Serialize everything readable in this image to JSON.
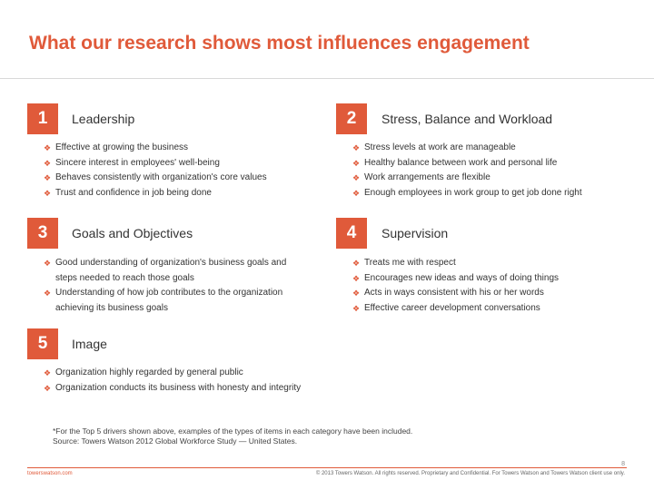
{
  "title": "What our research shows most influences engagement",
  "bullet_icon": "diamond-cluster-icon",
  "accent_color": "#e05a3a",
  "sections": [
    {
      "number": "1",
      "heading": "Leadership",
      "items": [
        "Effective at growing the business",
        "Sincere interest in employees' well-being",
        "Behaves consistently with organization's core values",
        "Trust and confidence in job being done"
      ]
    },
    {
      "number": "2",
      "heading": "Stress, Balance and Workload",
      "items": [
        "Stress levels at work are manageable",
        "Healthy balance between work and personal life",
        "Work arrangements are flexible",
        "Enough employees in work group to get job done right"
      ]
    },
    {
      "number": "3",
      "heading": "Goals and Objectives",
      "items": [
        "Good understanding of organization's business goals and steps needed to reach those goals",
        "Understanding of how job contributes to the organization achieving its business goals"
      ]
    },
    {
      "number": "4",
      "heading": "Supervision",
      "items": [
        "Treats me with respect",
        "Encourages new ideas and ways of doing things",
        "Acts in ways consistent with his or her words",
        "Effective career development conversations"
      ]
    },
    {
      "number": "5",
      "heading": "Image",
      "items": [
        "Organization highly regarded by general public",
        "Organization conducts its business with honesty and integrity"
      ]
    }
  ],
  "footnote": {
    "line1": "*For the Top 5 drivers shown above, examples of the types of items in each category have been included.",
    "line2": "Source: Towers Watson 2012 Global Workforce Study — United States."
  },
  "page_number": "8",
  "footer_left": "towerswatson.com",
  "footer_right": "© 2013 Towers Watson. All rights reserved. Proprietary and Confidential. For Towers Watson and Towers Watson client use only."
}
